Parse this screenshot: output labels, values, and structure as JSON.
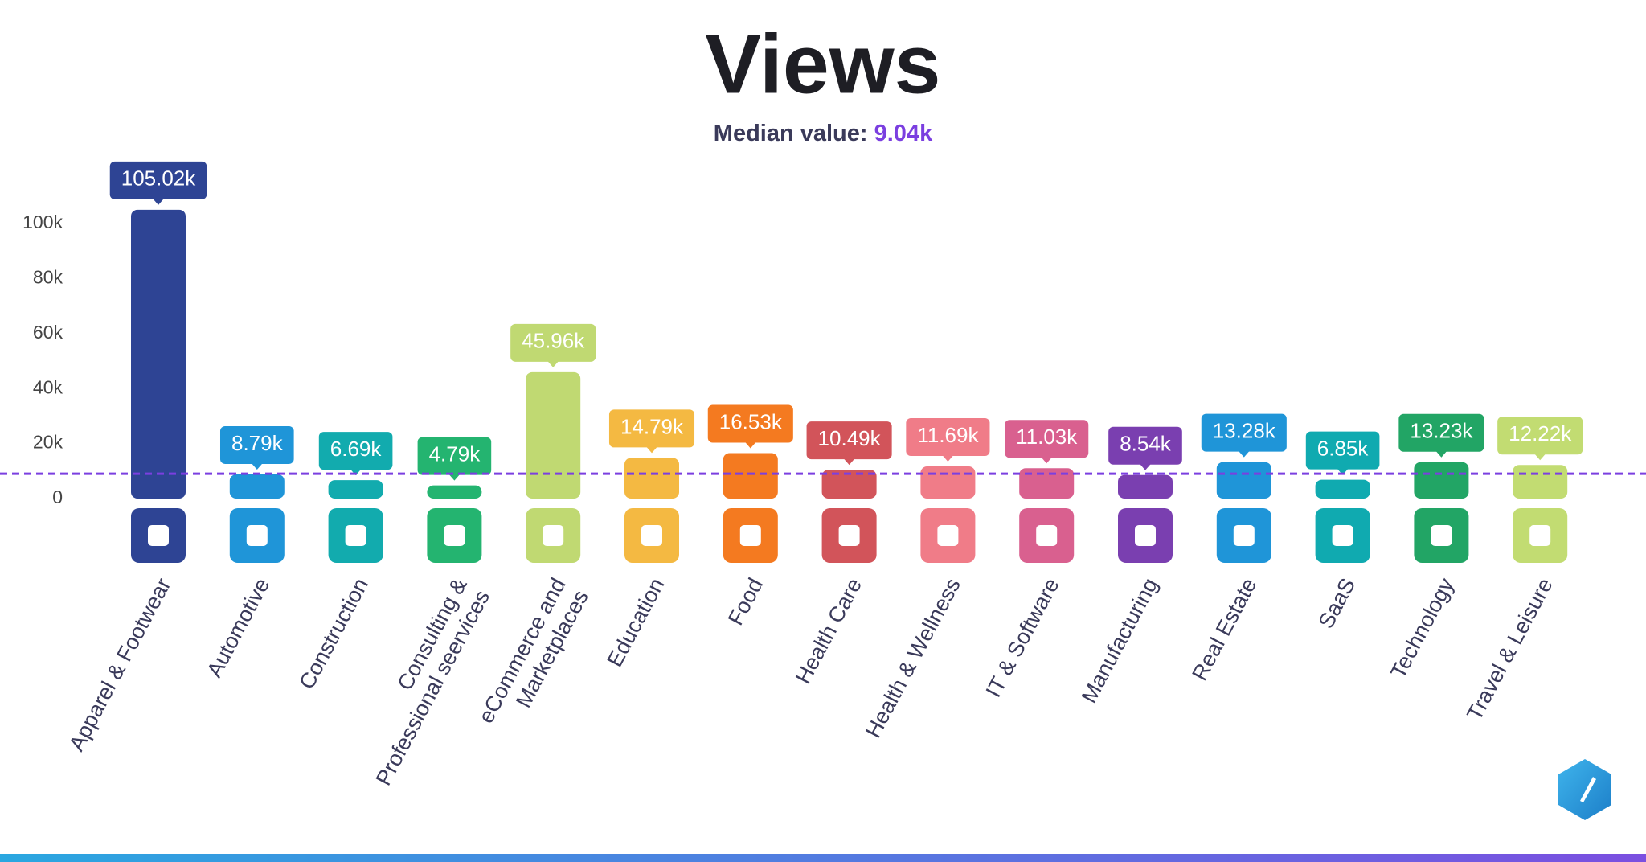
{
  "chart_data": {
    "type": "bar",
    "title": "Views",
    "median": {
      "label": "Median value:",
      "value": 9040,
      "value_label": "9.04k",
      "color": "#7b3fe0"
    },
    "categories": [
      "Apparel & Footwear",
      "Automotive",
      "Construction",
      "Consulting &\nProfessional seervices",
      "eCommerce and\nMarketplaces",
      "Education",
      "Food",
      "Health Care",
      "Health & Wellness",
      "IT & Software",
      "Manufacturing",
      "Real Estate",
      "SaaS",
      "Technology",
      "Travel & Leisure"
    ],
    "values": [
      105020,
      8790,
      6690,
      4790,
      45960,
      14790,
      16530,
      10490,
      11690,
      11030,
      8540,
      13280,
      6850,
      13230,
      12220
    ],
    "value_labels": [
      "105.02k",
      "8.79k",
      "6.69k",
      "4.79k",
      "45.96k",
      "14.79k",
      "16.53k",
      "10.49k",
      "11.69k",
      "11.03k",
      "8.54k",
      "13.28k",
      "6.85k",
      "13.23k",
      "12.22k"
    ],
    "colors": [
      "#2e4494",
      "#1f95d8",
      "#12abae",
      "#24b470",
      "#c0d972",
      "#f4b942",
      "#f47a20",
      "#d2545a",
      "#f07c88",
      "#d9608f",
      "#7a3fb0",
      "#1f95d8",
      "#10aab0",
      "#22a565",
      "#c2dc72"
    ],
    "ylim": [
      0,
      100000
    ],
    "yticks": [
      0,
      {
        "value": 20000,
        "label": "20k"
      },
      {
        "value": 40000,
        "label": "40k"
      },
      {
        "value": 60000,
        "label": "60k"
      },
      {
        "value": 80000,
        "label": "80k"
      },
      {
        "value": 100000,
        "label": "100k"
      }
    ]
  }
}
